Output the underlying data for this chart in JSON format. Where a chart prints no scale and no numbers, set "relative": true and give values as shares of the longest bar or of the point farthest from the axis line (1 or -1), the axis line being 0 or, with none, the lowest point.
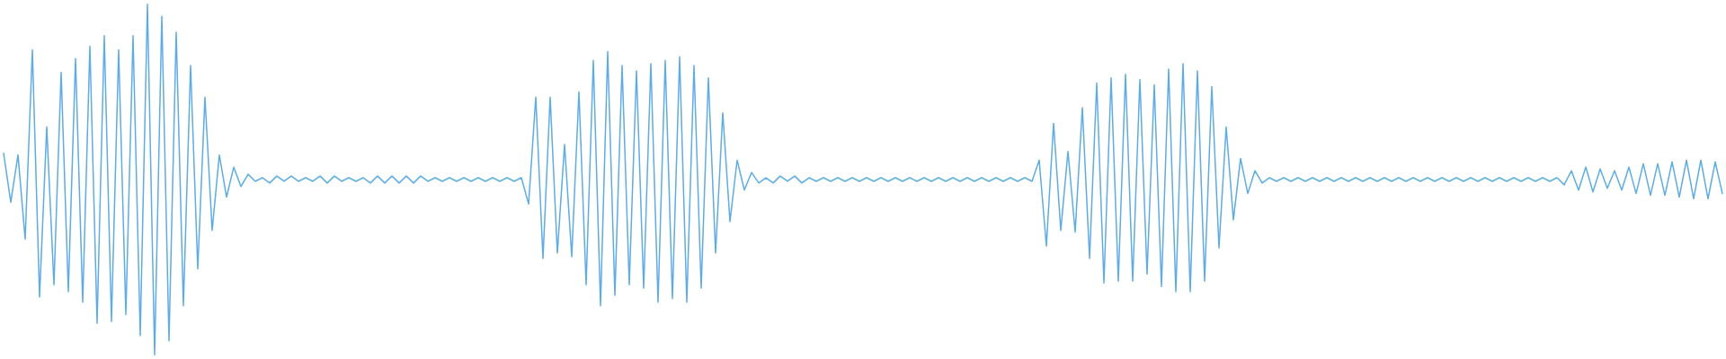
{
  "chart_data": {
    "type": "line",
    "relative": true,
    "color": "#5dade2",
    "categories": [
      null,
      null,
      null,
      null,
      null,
      null,
      null,
      null,
      null,
      null,
      null,
      null,
      null,
      null,
      null,
      null,
      null,
      null,
      null,
      null,
      null,
      null,
      null,
      null,
      null,
      null,
      null,
      null,
      null,
      null,
      null,
      null,
      null,
      null,
      null,
      null,
      null,
      null,
      null,
      null,
      null,
      null,
      null,
      null,
      null,
      null,
      null,
      null,
      null,
      null,
      null,
      null,
      null,
      null,
      null,
      null,
      null,
      null,
      null,
      null,
      null,
      null,
      null,
      null,
      null,
      null,
      null,
      null,
      null,
      null,
      null,
      null,
      null,
      null,
      null,
      null,
      null,
      null,
      null,
      null,
      null,
      null,
      null,
      null,
      null,
      null,
      null,
      null,
      null,
      null,
      null,
      null,
      null,
      null,
      null,
      null,
      null,
      null,
      null,
      null,
      null,
      null,
      null,
      null,
      null,
      null,
      null,
      null,
      null,
      null,
      null,
      null,
      null,
      null,
      null,
      null,
      null,
      null,
      null,
      null,
      null,
      null,
      null,
      null,
      null,
      null,
      null,
      null,
      null,
      null,
      null,
      null,
      null,
      null,
      null,
      null,
      null,
      null,
      null,
      null,
      null,
      null,
      null,
      null,
      null,
      null,
      null,
      null,
      null,
      null,
      null,
      null,
      null,
      null,
      null,
      null,
      null,
      null,
      null,
      null,
      null,
      null,
      null,
      null,
      null,
      null,
      null,
      null,
      null,
      null,
      null,
      null,
      null,
      null,
      null,
      null,
      null,
      null,
      null,
      null,
      null,
      null,
      null,
      null,
      null,
      null,
      null,
      null,
      null,
      null,
      null,
      null,
      null,
      null,
      null,
      null,
      null,
      null,
      null,
      null,
      null,
      null,
      null,
      null,
      null,
      null,
      null,
      null,
      null,
      null,
      null,
      null,
      null,
      null,
      null,
      null,
      null,
      null,
      null,
      null,
      null,
      null,
      null,
      null,
      null,
      null,
      null,
      null,
      null,
      null,
      null,
      null,
      null,
      null,
      null,
      null,
      null,
      null,
      null,
      null
    ],
    "values": [
      0.575,
      0.435,
      0.57,
      0.33,
      0.87,
      0.165,
      0.65,
      0.2,
      0.805,
      0.18,
      0.845,
      0.15,
      0.88,
      0.09,
      0.91,
      0.095,
      0.87,
      0.115,
      0.91,
      0.055,
      1.0,
      0.0,
      0.965,
      0.04,
      0.92,
      0.14,
      0.825,
      0.245,
      0.735,
      0.355,
      0.57,
      0.45,
      0.535,
      0.48,
      0.515,
      0.495,
      0.505,
      0.49,
      0.51,
      0.495,
      0.51,
      0.495,
      0.505,
      0.495,
      0.51,
      0.49,
      0.51,
      0.495,
      0.505,
      0.495,
      0.505,
      0.49,
      0.51,
      0.49,
      0.51,
      0.49,
      0.51,
      0.49,
      0.51,
      0.495,
      0.505,
      0.495,
      0.505,
      0.495,
      0.505,
      0.495,
      0.505,
      0.495,
      0.505,
      0.495,
      0.505,
      0.495,
      0.505,
      0.43,
      0.735,
      0.275,
      0.735,
      0.29,
      0.6,
      0.28,
      0.75,
      0.2,
      0.84,
      0.14,
      0.865,
      0.17,
      0.825,
      0.2,
      0.81,
      0.19,
      0.83,
      0.15,
      0.84,
      0.16,
      0.85,
      0.15,
      0.825,
      0.19,
      0.79,
      0.29,
      0.69,
      0.38,
      0.555,
      0.47,
      0.52,
      0.49,
      0.505,
      0.49,
      0.51,
      0.495,
      0.51,
      0.49,
      0.505,
      0.495,
      0.505,
      0.495,
      0.505,
      0.495,
      0.505,
      0.495,
      0.505,
      0.495,
      0.505,
      0.495,
      0.505,
      0.495,
      0.505,
      0.495,
      0.505,
      0.495,
      0.505,
      0.495,
      0.505,
      0.495,
      0.505,
      0.495,
      0.505,
      0.495,
      0.505,
      0.495,
      0.505,
      0.495,
      0.505,
      0.495,
      0.555,
      0.31,
      0.66,
      0.355,
      0.58,
      0.35,
      0.705,
      0.275,
      0.775,
      0.205,
      0.79,
      0.21,
      0.8,
      0.21,
      0.785,
      0.23,
      0.77,
      0.195,
      0.815,
      0.18,
      0.83,
      0.18,
      0.81,
      0.21,
      0.765,
      0.305,
      0.65,
      0.385,
      0.56,
      0.46,
      0.525,
      0.49,
      0.505,
      0.495,
      0.505,
      0.495,
      0.505,
      0.495,
      0.505,
      0.495,
      0.505,
      0.495,
      0.505,
      0.495,
      0.505,
      0.495,
      0.505,
      0.495,
      0.505,
      0.495,
      0.505,
      0.495,
      0.505,
      0.495,
      0.505,
      0.495,
      0.505,
      0.495,
      0.505,
      0.495,
      0.505,
      0.495,
      0.505,
      0.495,
      0.505,
      0.495,
      0.505,
      0.495,
      0.505,
      0.495,
      0.505,
      0.495,
      0.505,
      0.485,
      0.525,
      0.47,
      0.535,
      0.465,
      0.53,
      0.475,
      0.525,
      0.47,
      0.535,
      0.46,
      0.545,
      0.455,
      0.545,
      0.455,
      0.55,
      0.45,
      0.555,
      0.445,
      0.555,
      0.445,
      0.55,
      0.46
    ]
  }
}
